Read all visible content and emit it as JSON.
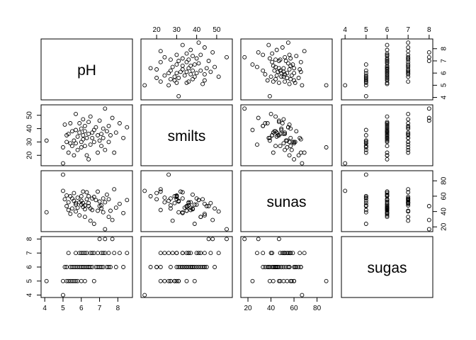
{
  "chart_data": {
    "type": "scatter",
    "kind": "pairs-matrix",
    "variables": [
      "pH",
      "smilts",
      "sunas",
      "sugas"
    ],
    "ranges": {
      "pH": [
        4,
        8.6
      ],
      "smilts": [
        14,
        56
      ],
      "sunas": [
        17,
        90
      ],
      "sugas": [
        4,
        8
      ]
    },
    "ticks": {
      "pH": [
        4,
        5,
        6,
        7,
        8
      ],
      "smilts": [
        20,
        30,
        40,
        50
      ],
      "sunas": [
        20,
        40,
        60,
        80
      ],
      "sugas": [
        4,
        5,
        6,
        7,
        8
      ]
    },
    "observations": {
      "pH": [
        4.1,
        5.0,
        5.0,
        5.1,
        5.2,
        5.2,
        5.3,
        5.3,
        5.4,
        5.5,
        5.5,
        5.6,
        5.6,
        5.7,
        5.7,
        5.7,
        5.8,
        5.8,
        5.9,
        5.9,
        6.0,
        6.0,
        6.0,
        6.1,
        6.1,
        6.1,
        6.2,
        6.2,
        6.2,
        6.3,
        6.3,
        6.4,
        6.4,
        6.5,
        6.5,
        6.6,
        6.6,
        6.7,
        6.7,
        6.8,
        6.9,
        6.9,
        7.0,
        7.0,
        7.1,
        7.1,
        7.2,
        7.2,
        7.3,
        7.3,
        7.4,
        7.5,
        7.5,
        7.6,
        7.7,
        7.8,
        7.9,
        8.1,
        8.3,
        8.5,
        5.4,
        6.4
      ],
      "smilts": [
        31,
        14,
        26,
        43,
        35,
        30,
        36,
        22,
        44,
        27,
        38,
        31,
        20,
        51,
        29,
        39,
        24,
        34,
        37,
        44,
        30,
        40,
        26,
        35,
        47,
        32,
        27,
        38,
        42,
        20,
        33,
        45,
        36,
        28,
        49,
        33,
        37,
        39,
        30,
        41,
        22,
        35,
        46,
        31,
        36,
        27,
        40,
        33,
        55,
        24,
        38,
        42,
        30,
        35,
        48,
        22,
        37,
        44,
        33,
        41,
        29,
        17
      ],
      "sunas": [
        39,
        67,
        88,
        56,
        47,
        61,
        52,
        42,
        37,
        57,
        44,
        54,
        64,
        40,
        51,
        49,
        58,
        45,
        52,
        35,
        60,
        49,
        54,
        46,
        51,
        66,
        48,
        43,
        33,
        56,
        65,
        47,
        51,
        28,
        44,
        57,
        42,
        24,
        59,
        55,
        66,
        41,
        47,
        53,
        48,
        44,
        57,
        39,
        17,
        52,
        62,
        33,
        56,
        41,
        29,
        69,
        45,
        50,
        38,
        55,
        60,
        60
      ],
      "sugas": [
        5,
        4,
        5,
        6,
        5,
        6,
        7,
        5,
        6,
        5,
        6,
        5,
        6,
        7,
        5,
        6,
        5,
        6,
        7,
        6,
        5,
        6,
        7,
        6,
        7,
        6,
        5,
        6,
        7,
        6,
        7,
        6,
        6,
        7,
        6,
        7,
        6,
        5,
        7,
        6,
        6,
        7,
        8,
        6,
        7,
        6,
        7,
        6,
        8,
        7,
        6,
        6,
        7,
        6,
        8,
        7,
        6,
        7,
        6,
        7,
        5,
        6
      ]
    },
    "title": "",
    "grid": false,
    "legend": "none"
  }
}
